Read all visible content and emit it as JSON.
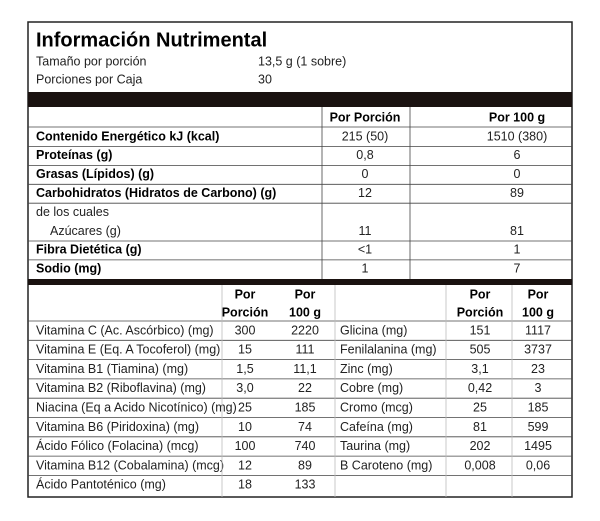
{
  "header": {
    "title": "Información Nutrimental",
    "rows": [
      [
        "Tamaño por porción",
        "13,5 g (1 sobre)"
      ],
      [
        "Porciones por Caja",
        "30"
      ]
    ]
  },
  "nutrients": {
    "columns": [
      "Por Porción",
      "Por 100 g"
    ],
    "rows": [
      {
        "label": "Contenido Energético kJ (kcal)",
        "values": [
          "215 (50)",
          "1510 (380)"
        ],
        "bold": true
      },
      {
        "label": "Proteínas (g)",
        "values": [
          "0,8",
          "6"
        ],
        "bold": true
      },
      {
        "label": "Grasas (Lípidos) (g)",
        "values": [
          "0",
          "0"
        ],
        "bold": true
      },
      {
        "label": "Carbohidratos (Hidratos de Carbono) (g)",
        "values": [
          "12",
          "89"
        ],
        "bold": true
      },
      {
        "label": "de los cuales",
        "values": [],
        "bold": false
      },
      {
        "label": "Azúcares (g)",
        "values": [
          "11",
          "81"
        ],
        "bold": false,
        "indent": true
      },
      {
        "label": "Fibra Dietética (g)",
        "values": [
          "<1",
          "1"
        ],
        "bold": true
      },
      {
        "label": "Sodio (mg)",
        "values": [
          "1",
          "7"
        ],
        "bold": true
      }
    ]
  },
  "vitamins": {
    "columns": [
      [
        "Por",
        "Porción"
      ],
      [
        "Por",
        "100 g"
      ]
    ],
    "left": [
      [
        "Vitamina C (Ac. Ascórbico) (mg)",
        "300",
        "2220"
      ],
      [
        "Vitamina E (Eq. A Tocoferol) (mg)",
        "15",
        "111"
      ],
      [
        "Vitamina B1 (Tiamina) (mg)",
        "1,5",
        "11,1"
      ],
      [
        "Vitamina B2 (Riboflavina) (mg)",
        "3,0",
        "22"
      ],
      [
        "Niacina (Eq a Acido Nicotínico) (mg)",
        "25",
        "185"
      ],
      [
        "Vitamina B6 (Piridoxina) (mg)",
        "10",
        "74"
      ],
      [
        "Ácido Fólico (Folacina) (mcg)",
        "100",
        "740"
      ],
      [
        "Vitamina B12 (Cobalamina) (mcg)",
        "12",
        "89"
      ],
      [
        "Ácido Pantoténico (mg)",
        "18",
        "133"
      ]
    ],
    "right": [
      [
        "Glicina (mg)",
        "151",
        "1117"
      ],
      [
        "Fenilalanina (mg)",
        "505",
        "3737"
      ],
      [
        "Zinc (mg)",
        "3,1",
        "23"
      ],
      [
        "Cobre (mg)",
        "0,42",
        "3"
      ],
      [
        "Cromo (mcg)",
        "25",
        "185"
      ],
      [
        "Cafeína (mg)",
        "81",
        "599"
      ],
      [
        "Taurina (mg)",
        "202",
        "1495"
      ],
      [
        "B Caroteno (mg)",
        "0,008",
        "0,06"
      ]
    ]
  }
}
